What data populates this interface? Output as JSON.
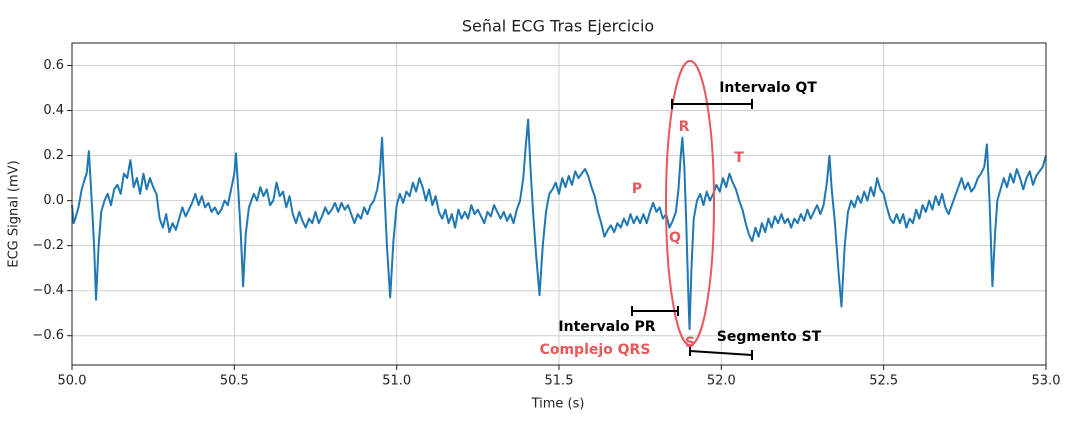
{
  "chart_data": {
    "type": "line",
    "title": "Señal ECG Tras Ejercicio",
    "x_label": "Time (s)",
    "y_label": "ECG Signal (mV)",
    "color": "#1f77b4",
    "grid": true,
    "xlim": [
      50.0,
      53.0
    ],
    "ylim": [
      -0.73,
      0.7
    ],
    "xticks": [
      {
        "value": 50.0,
        "label": "50.0"
      },
      50.5,
      {
        "value": 51.0,
        "label": "51.0"
      },
      51.5,
      {
        "value": 52.0,
        "label": "52.0"
      },
      52.5,
      {
        "value": 53.0,
        "label": "53.0"
      }
    ],
    "yticks": [
      {
        "value": -0.6,
        "label": "−0.6"
      },
      {
        "value": -0.4,
        "label": "−0.4"
      },
      {
        "value": -0.2,
        "label": "−0.2"
      },
      {
        "value": 0.0,
        "label": "0.0"
      },
      0.2,
      0.4,
      0.6
    ],
    "annotations": [
      {
        "text": "Intervalo QT",
        "color": "#000000"
      },
      {
        "text": "R",
        "color": "#e8585a"
      },
      {
        "text": "T",
        "color": "#e8585a"
      },
      {
        "text": "P",
        "color": "#e8585a"
      },
      {
        "text": "Q",
        "color": "#e8585a"
      },
      {
        "text": "Intervalo PR",
        "color": "#000000"
      },
      {
        "text": "Complejo QRS",
        "color": "#e8585a"
      },
      {
        "text": "S",
        "color": "#e8585a"
      },
      {
        "text": "Segmento ST",
        "color": "#000000"
      }
    ],
    "x": [
      50.0,
      50.005,
      50.01,
      50.02,
      50.03,
      50.04,
      50.045,
      50.052,
      50.06,
      50.068,
      50.074,
      50.082,
      50.09,
      50.1,
      50.11,
      50.12,
      50.13,
      50.14,
      50.15,
      50.16,
      50.17,
      50.18,
      50.19,
      50.2,
      50.21,
      50.22,
      50.23,
      50.24,
      50.25,
      50.26,
      50.27,
      50.28,
      50.29,
      50.3,
      50.31,
      50.32,
      50.33,
      50.34,
      50.35,
      50.36,
      50.37,
      50.38,
      50.39,
      50.4,
      50.41,
      50.42,
      50.43,
      50.44,
      50.45,
      50.46,
      50.47,
      50.48,
      50.49,
      50.5,
      50.505,
      50.512,
      50.52,
      50.527,
      50.535,
      50.545,
      50.56,
      50.57,
      50.58,
      50.59,
      50.6,
      50.61,
      50.62,
      50.63,
      50.64,
      50.65,
      50.66,
      50.67,
      50.68,
      50.69,
      50.7,
      50.71,
      50.72,
      50.73,
      50.74,
      50.75,
      50.76,
      50.77,
      50.78,
      50.79,
      50.8,
      50.81,
      50.82,
      50.83,
      50.84,
      50.85,
      50.86,
      50.87,
      50.88,
      50.89,
      50.9,
      50.91,
      50.92,
      50.93,
      50.94,
      50.948,
      50.955,
      50.962,
      50.97,
      50.98,
      50.99,
      51.0,
      51.01,
      51.02,
      51.03,
      51.04,
      51.05,
      51.06,
      51.07,
      51.08,
      51.09,
      51.1,
      51.11,
      51.12,
      51.13,
      51.14,
      51.15,
      51.16,
      51.17,
      51.18,
      51.19,
      51.2,
      51.21,
      51.22,
      51.23,
      51.24,
      51.25,
      51.26,
      51.27,
      51.28,
      51.29,
      51.3,
      51.31,
      51.32,
      51.33,
      51.34,
      51.35,
      51.36,
      51.37,
      51.38,
      51.39,
      51.398,
      51.405,
      51.412,
      51.42,
      51.43,
      51.44,
      51.45,
      51.46,
      51.47,
      51.48,
      51.49,
      51.5,
      51.51,
      51.52,
      51.53,
      51.54,
      51.55,
      51.56,
      51.57,
      51.58,
      51.59,
      51.6,
      51.61,
      51.62,
      51.63,
      51.64,
      51.65,
      51.66,
      51.67,
      51.68,
      51.69,
      51.7,
      51.71,
      51.72,
      51.73,
      51.74,
      51.75,
      51.76,
      51.77,
      51.78,
      51.79,
      51.8,
      51.81,
      51.82,
      51.83,
      51.84,
      51.85,
      51.86,
      51.868,
      51.875,
      51.88,
      51.886,
      51.892,
      51.898,
      51.902,
      51.908,
      51.915,
      51.925,
      51.935,
      51.945,
      51.955,
      51.965,
      51.975,
      51.985,
      51.995,
      52.005,
      52.015,
      52.025,
      52.035,
      52.045,
      52.055,
      52.065,
      52.075,
      52.085,
      52.095,
      52.105,
      52.115,
      52.125,
      52.135,
      52.145,
      52.155,
      52.165,
      52.175,
      52.185,
      52.195,
      52.205,
      52.215,
      52.225,
      52.235,
      52.245,
      52.255,
      52.265,
      52.275,
      52.285,
      52.295,
      52.305,
      52.315,
      52.325,
      52.333,
      52.34,
      52.35,
      52.36,
      52.37,
      52.38,
      52.39,
      52.4,
      52.41,
      52.42,
      52.43,
      52.44,
      52.45,
      52.46,
      52.47,
      52.48,
      52.49,
      52.5,
      52.51,
      52.52,
      52.53,
      52.54,
      52.55,
      52.56,
      52.57,
      52.58,
      52.59,
      52.6,
      52.61,
      52.62,
      52.63,
      52.64,
      52.65,
      52.66,
      52.67,
      52.68,
      52.69,
      52.7,
      52.71,
      52.72,
      52.73,
      52.74,
      52.75,
      52.76,
      52.77,
      52.78,
      52.79,
      52.8,
      52.81,
      52.818,
      52.826,
      52.835,
      52.843,
      52.85,
      52.86,
      52.87,
      52.88,
      52.89,
      52.9,
      52.91,
      52.92,
      52.93,
      52.94,
      52.95,
      52.96,
      52.97,
      52.98,
      52.99,
      53.0
    ],
    "values": [
      -0.02,
      -0.1,
      -0.08,
      -0.03,
      0.05,
      0.1,
      0.12,
      0.22,
      0.02,
      -0.2,
      -0.44,
      -0.2,
      -0.05,
      0.0,
      0.03,
      -0.02,
      0.05,
      0.07,
      0.03,
      0.12,
      0.1,
      0.18,
      0.06,
      0.1,
      0.03,
      0.12,
      0.05,
      0.1,
      0.06,
      0.03,
      -0.08,
      -0.12,
      -0.06,
      -0.14,
      -0.1,
      -0.13,
      -0.08,
      -0.03,
      -0.07,
      -0.04,
      -0.01,
      0.03,
      -0.02,
      0.02,
      -0.03,
      -0.01,
      -0.05,
      -0.03,
      -0.06,
      -0.04,
      0.0,
      -0.02,
      0.05,
      0.12,
      0.21,
      0.05,
      -0.15,
      -0.38,
      -0.15,
      -0.03,
      0.03,
      0.0,
      0.06,
      0.02,
      0.05,
      -0.02,
      0.0,
      0.08,
      0.02,
      0.04,
      -0.03,
      0.02,
      -0.06,
      -0.1,
      -0.05,
      -0.09,
      -0.12,
      -0.08,
      -0.1,
      -0.05,
      -0.1,
      -0.07,
      -0.03,
      -0.06,
      -0.04,
      -0.01,
      -0.05,
      -0.01,
      -0.04,
      -0.02,
      -0.06,
      -0.1,
      -0.06,
      -0.08,
      -0.03,
      -0.06,
      -0.02,
      0.0,
      0.05,
      0.12,
      0.28,
      0.05,
      -0.2,
      -0.43,
      -0.18,
      -0.02,
      0.03,
      -0.01,
      0.04,
      0.02,
      0.08,
      0.04,
      0.1,
      0.06,
      0.0,
      0.05,
      -0.02,
      0.02,
      -0.05,
      -0.08,
      -0.04,
      -0.1,
      -0.06,
      -0.12,
      -0.04,
      -0.08,
      -0.05,
      -0.08,
      -0.02,
      -0.06,
      -0.04,
      -0.07,
      -0.1,
      -0.05,
      -0.07,
      -0.02,
      -0.05,
      -0.08,
      -0.05,
      -0.09,
      -0.06,
      -0.1,
      -0.04,
      0.0,
      0.1,
      0.25,
      0.36,
      0.15,
      -0.05,
      -0.25,
      -0.42,
      -0.2,
      -0.05,
      0.03,
      0.05,
      0.08,
      0.03,
      0.1,
      0.06,
      0.11,
      0.07,
      0.13,
      0.1,
      0.12,
      0.14,
      0.11,
      0.06,
      0.02,
      -0.05,
      -0.1,
      -0.16,
      -0.13,
      -0.11,
      -0.14,
      -0.1,
      -0.12,
      -0.08,
      -0.11,
      -0.06,
      -0.1,
      -0.07,
      -0.1,
      -0.06,
      -0.1,
      -0.05,
      -0.01,
      -0.05,
      -0.03,
      -0.08,
      -0.06,
      -0.12,
      -0.09,
      -0.05,
      0.05,
      0.2,
      0.28,
      0.15,
      -0.1,
      -0.4,
      -0.57,
      -0.3,
      -0.08,
      0.0,
      0.03,
      -0.02,
      0.04,
      0.0,
      0.03,
      0.07,
      0.04,
      0.1,
      0.06,
      0.12,
      0.08,
      0.05,
      0.0,
      -0.04,
      -0.1,
      -0.15,
      -0.18,
      -0.12,
      -0.16,
      -0.1,
      -0.14,
      -0.08,
      -0.12,
      -0.07,
      -0.1,
      -0.06,
      -0.1,
      -0.08,
      -0.12,
      -0.08,
      -0.1,
      -0.06,
      -0.09,
      -0.04,
      -0.08,
      -0.05,
      -0.02,
      -0.06,
      -0.02,
      0.08,
      0.2,
      0.05,
      -0.1,
      -0.3,
      -0.47,
      -0.2,
      -0.05,
      0.0,
      -0.03,
      0.02,
      -0.01,
      0.04,
      0.0,
      0.06,
      0.02,
      0.1,
      0.05,
      0.03,
      -0.03,
      -0.08,
      -0.1,
      -0.06,
      -0.1,
      -0.06,
      -0.12,
      -0.08,
      -0.1,
      -0.04,
      -0.08,
      -0.02,
      -0.05,
      0.0,
      -0.04,
      0.02,
      -0.02,
      0.03,
      -0.03,
      -0.06,
      -0.02,
      0.02,
      0.06,
      0.1,
      0.05,
      0.08,
      0.04,
      0.06,
      0.1,
      0.12,
      0.15,
      0.25,
      0.0,
      -0.38,
      -0.15,
      0.0,
      0.05,
      0.1,
      0.06,
      0.12,
      0.08,
      0.14,
      0.1,
      0.05,
      0.1,
      0.13,
      0.07,
      0.11,
      0.13,
      0.15,
      0.2
    ]
  }
}
